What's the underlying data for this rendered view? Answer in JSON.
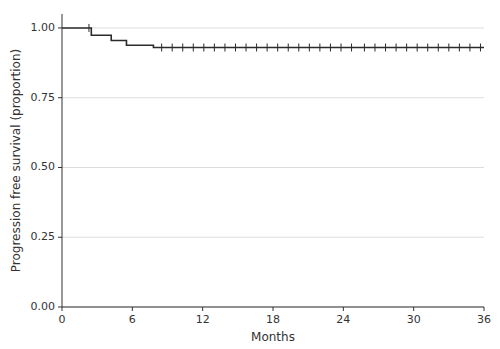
{
  "chart_data": {
    "type": "line",
    "xlabel": "Months",
    "ylabel": "Progression free survival (proportion)",
    "xlim": [
      0,
      36
    ],
    "ylim": [
      0,
      1.05
    ],
    "xticks": [
      0,
      6,
      12,
      18,
      24,
      30,
      36
    ],
    "yticks": [
      {
        "value": 0.0,
        "label": "0.00"
      },
      {
        "value": 0.25,
        "label": "0.25"
      },
      {
        "value": 0.5,
        "label": "0.50"
      },
      {
        "value": 0.75,
        "label": "0.75"
      },
      {
        "value": 1.0,
        "label": "1.00"
      }
    ],
    "grid": "y",
    "series": [
      {
        "type": "line",
        "color": "#2b2b2b",
        "x": [
          0,
          2.5,
          2.5,
          4.2,
          4.2,
          5.5,
          5.5,
          7.8,
          7.8,
          36
        ],
        "values": [
          1.0,
          1.0,
          0.974,
          0.974,
          0.955,
          0.955,
          0.938,
          0.938,
          0.93,
          0.93
        ]
      },
      {
        "type": "scatter",
        "marker": "vline",
        "color": "#2b2b2b",
        "x": [
          2.3,
          8.5,
          9.4,
          10.3,
          11.2,
          12.1,
          13.0,
          13.9,
          14.8,
          15.7,
          16.6,
          17.5,
          18.4,
          19.3,
          20.2,
          21.1,
          22.0,
          22.9,
          23.8,
          24.7,
          25.8,
          26.7,
          27.6,
          28.5,
          29.4,
          30.3,
          31.2,
          32.1,
          33.0,
          33.9,
          34.8,
          35.7
        ],
        "values": [
          1.0,
          0.93,
          0.93,
          0.93,
          0.93,
          0.93,
          0.93,
          0.93,
          0.93,
          0.93,
          0.93,
          0.93,
          0.93,
          0.93,
          0.93,
          0.93,
          0.93,
          0.93,
          0.93,
          0.93,
          0.93,
          0.93,
          0.93,
          0.93,
          0.93,
          0.93,
          0.93,
          0.93,
          0.93,
          0.93,
          0.93,
          0.93
        ]
      }
    ]
  }
}
